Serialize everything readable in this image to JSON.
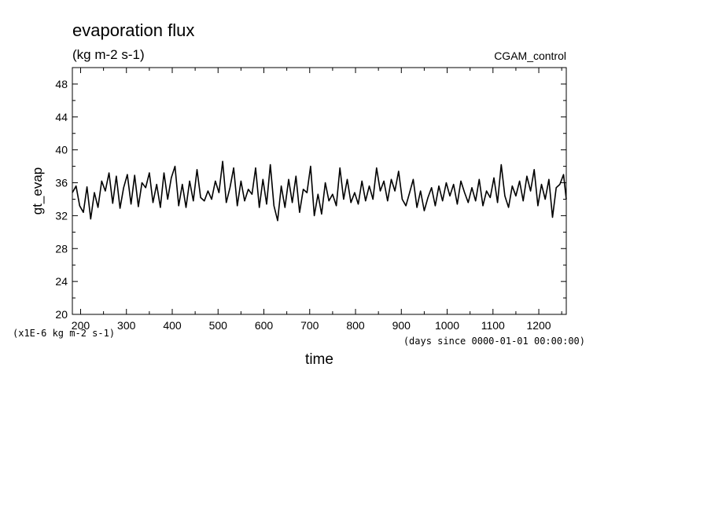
{
  "chart_data": {
    "type": "line",
    "title": "evaporation flux",
    "subtitle": "(kg m-2 s-1)",
    "dataset_label": "CGAM_control",
    "ylabel": "gt_evap",
    "xlabel": "time",
    "x_units": "(days since 0000-01-01 00:00:00)",
    "y_units": "(x1E-6 kg m-2 s-1)",
    "xlim": [
      182,
      1260
    ],
    "ylim": [
      20,
      50
    ],
    "x_ticks": [
      200,
      300,
      400,
      500,
      600,
      700,
      800,
      900,
      1000,
      1100,
      1200
    ],
    "y_ticks": [
      20,
      24,
      28,
      32,
      36,
      40,
      44,
      48
    ],
    "grid": false,
    "series": [
      {
        "name": "",
        "color": "#000000",
        "x": [
          182,
          190,
          198,
          206,
          214,
          222,
          230,
          238,
          246,
          254,
          262,
          270,
          278,
          286,
          294,
          302,
          310,
          318,
          326,
          334,
          342,
          350,
          358,
          366,
          374,
          382,
          390,
          398,
          406,
          414,
          422,
          430,
          438,
          446,
          454,
          462,
          470,
          478,
          486,
          494,
          502,
          510,
          518,
          526,
          534,
          542,
          550,
          558,
          566,
          574,
          582,
          590,
          598,
          606,
          614,
          622,
          630,
          638,
          646,
          654,
          662,
          670,
          678,
          686,
          694,
          702,
          710,
          718,
          726,
          734,
          742,
          750,
          758,
          766,
          774,
          782,
          790,
          798,
          806,
          814,
          822,
          830,
          838,
          846,
          854,
          862,
          870,
          878,
          886,
          894,
          902,
          910,
          918,
          926,
          934,
          942,
          950,
          958,
          966,
          974,
          982,
          990,
          998,
          1006,
          1014,
          1022,
          1030,
          1038,
          1046,
          1054,
          1062,
          1070,
          1078,
          1086,
          1094,
          1102,
          1110,
          1118,
          1126,
          1134,
          1142,
          1150,
          1158,
          1166,
          1174,
          1182,
          1190,
          1198,
          1206,
          1214,
          1222,
          1230,
          1238,
          1246,
          1254,
          1260
        ],
        "values": [
          34.8,
          35.6,
          33.2,
          32.4,
          35.5,
          31.6,
          34.8,
          33.0,
          36.2,
          35.0,
          37.2,
          33.5,
          36.8,
          32.9,
          35.4,
          37.0,
          33.4,
          36.9,
          33.1,
          36.0,
          35.4,
          37.2,
          33.6,
          35.8,
          33.0,
          37.2,
          34.0,
          36.6,
          38.0,
          33.2,
          35.8,
          33.0,
          36.2,
          33.8,
          37.6,
          34.2,
          33.8,
          35.0,
          34.0,
          36.2,
          34.8,
          38.6,
          33.6,
          35.4,
          37.8,
          33.2,
          36.2,
          33.8,
          35.2,
          34.6,
          37.8,
          33.0,
          36.4,
          33.4,
          38.2,
          33.2,
          31.4,
          35.6,
          33.0,
          36.4,
          33.6,
          36.8,
          32.4,
          35.2,
          34.8,
          38.0,
          32.0,
          34.6,
          32.2,
          36.0,
          33.8,
          34.6,
          33.2,
          37.8,
          34.0,
          36.4,
          33.6,
          34.8,
          33.4,
          36.2,
          33.8,
          35.6,
          34.0,
          37.8,
          35.0,
          36.2,
          33.8,
          36.4,
          35.0,
          37.4,
          34.0,
          33.2,
          34.8,
          36.4,
          33.0,
          35.0,
          32.6,
          34.2,
          35.4,
          33.2,
          35.6,
          33.8,
          36.0,
          34.4,
          35.8,
          33.4,
          36.2,
          34.8,
          33.6,
          35.4,
          33.8,
          36.4,
          33.2,
          35.0,
          34.2,
          36.6,
          33.6,
          38.2,
          34.4,
          33.0,
          35.6,
          34.4,
          36.2,
          33.8,
          36.8,
          35.0,
          37.6,
          33.2,
          35.8,
          34.0,
          36.4,
          31.8,
          35.4,
          35.8,
          37.0,
          34.0
        ]
      }
    ]
  }
}
